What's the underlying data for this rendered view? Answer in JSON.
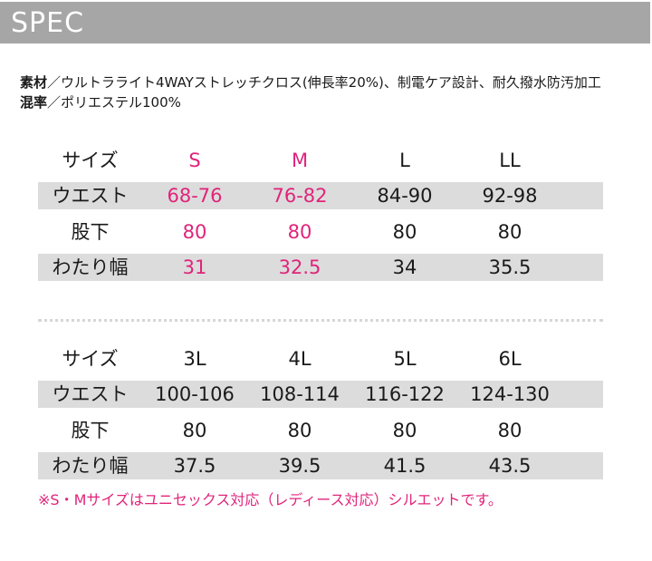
{
  "header": {
    "title": "SPEC"
  },
  "spec": {
    "material_key": "素材",
    "material_value": "／ウルトラライト4WAYストレッチクロス(伸長率20%)、制電ケア設計、耐久撥水防汚加工",
    "blend_key": "混率",
    "blend_value": "／ポリエステル100%"
  },
  "colors": {
    "accent_pink": "#e0247a",
    "header_gray": "#a6a6a6",
    "row_shade": "#dcdcdc"
  },
  "table1": {
    "rows": [
      {
        "label": "サイズ",
        "values": [
          "S",
          "M",
          "L",
          "LL"
        ]
      },
      {
        "label": "ウエスト",
        "values": [
          "68-76",
          "76-82",
          "84-90",
          "92-98"
        ]
      },
      {
        "label": "股下",
        "values": [
          "80",
          "80",
          "80",
          "80"
        ]
      },
      {
        "label": "わたり幅",
        "values": [
          "31",
          "32.5",
          "34",
          "35.5"
        ]
      }
    ]
  },
  "table2": {
    "rows": [
      {
        "label": "サイズ",
        "values": [
          "3L",
          "4L",
          "5L",
          "6L"
        ]
      },
      {
        "label": "ウエスト",
        "values": [
          "100-106",
          "108-114",
          "116-122",
          "124-130"
        ]
      },
      {
        "label": "股下",
        "values": [
          "80",
          "80",
          "80",
          "80"
        ]
      },
      {
        "label": "わたり幅",
        "values": [
          "37.5",
          "39.5",
          "41.5",
          "43.5"
        ]
      }
    ]
  },
  "note": "※S・Mサイズはユニセックス対応（レディース対応）シルエットです。"
}
